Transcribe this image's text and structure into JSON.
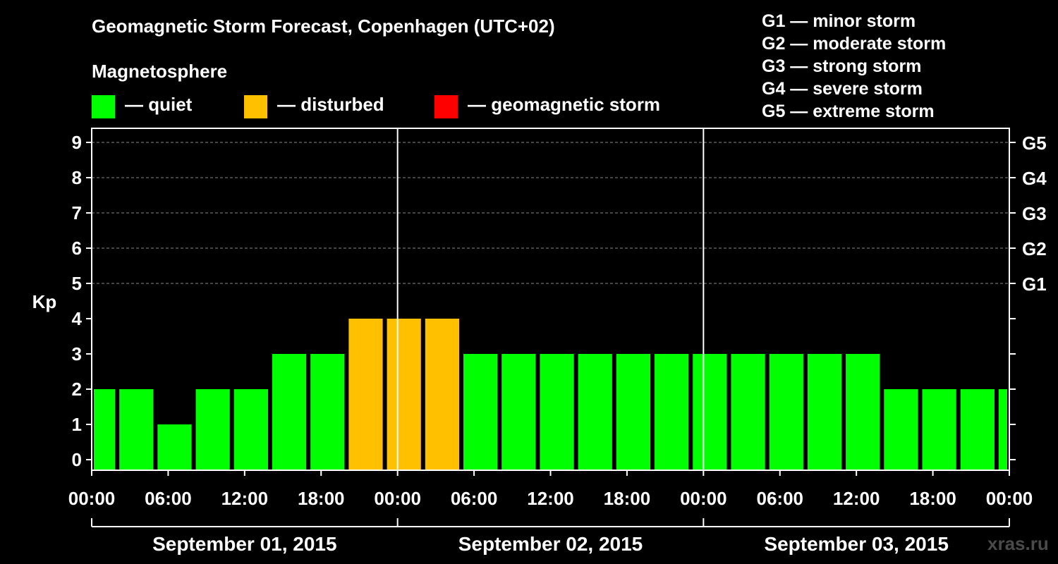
{
  "title": "Geomagnetic Storm Forecast, Copenhagen (UTC+02)",
  "magnetosphere": {
    "title": "Magnetosphere",
    "legend": [
      {
        "id": "quiet",
        "label": "— quiet",
        "color": "#00ff00"
      },
      {
        "id": "disturbed",
        "label": "— disturbed",
        "color": "#ffc000"
      },
      {
        "id": "storm",
        "label": "— geomagnetic storm",
        "color": "#ff0000"
      }
    ]
  },
  "g_scale": [
    "G1 — minor storm",
    "G2 — moderate storm",
    "G3 — strong storm",
    "G4 — severe storm",
    "G5 — extreme storm"
  ],
  "watermark": "xras.ru",
  "chart_data": {
    "type": "bar",
    "ylabel": "Kp",
    "ylim": [
      0,
      9
    ],
    "grid": "dashed horizontal lines at 5–9",
    "y_ticks": [
      "0",
      "1",
      "2",
      "3",
      "4",
      "5",
      "6",
      "7",
      "8",
      "9"
    ],
    "y2_ticks": [
      {
        "value": 5,
        "label": "G1"
      },
      {
        "value": 6,
        "label": "G2"
      },
      {
        "value": 7,
        "label": "G3"
      },
      {
        "value": 8,
        "label": "G4"
      },
      {
        "value": 9,
        "label": "G5"
      }
    ],
    "x_tick_labels": [
      "00:00",
      "06:00",
      "12:00",
      "18:00",
      "00:00",
      "06:00",
      "12:00",
      "18:00",
      "00:00",
      "06:00",
      "12:00",
      "18:00",
      "00:00"
    ],
    "dates": [
      "September 01, 2015",
      "September 02, 2015",
      "September 03, 2015"
    ],
    "x_range_hours": [
      0,
      72
    ],
    "bars": [
      {
        "start_hour": 0,
        "end_hour": 2,
        "value": 2,
        "level": "quiet"
      },
      {
        "start_hour": 2,
        "end_hour": 5,
        "value": 2,
        "level": "quiet"
      },
      {
        "start_hour": 5,
        "end_hour": 8,
        "value": 1,
        "level": "quiet"
      },
      {
        "start_hour": 8,
        "end_hour": 11,
        "value": 2,
        "level": "quiet"
      },
      {
        "start_hour": 11,
        "end_hour": 14,
        "value": 2,
        "level": "quiet"
      },
      {
        "start_hour": 14,
        "end_hour": 17,
        "value": 3,
        "level": "quiet"
      },
      {
        "start_hour": 17,
        "end_hour": 20,
        "value": 3,
        "level": "quiet"
      },
      {
        "start_hour": 20,
        "end_hour": 23,
        "value": 4,
        "level": "disturbed"
      },
      {
        "start_hour": 23,
        "end_hour": 26,
        "value": 4,
        "level": "disturbed"
      },
      {
        "start_hour": 26,
        "end_hour": 29,
        "value": 4,
        "level": "disturbed"
      },
      {
        "start_hour": 29,
        "end_hour": 32,
        "value": 3,
        "level": "quiet"
      },
      {
        "start_hour": 32,
        "end_hour": 35,
        "value": 3,
        "level": "quiet"
      },
      {
        "start_hour": 35,
        "end_hour": 38,
        "value": 3,
        "level": "quiet"
      },
      {
        "start_hour": 38,
        "end_hour": 41,
        "value": 3,
        "level": "quiet"
      },
      {
        "start_hour": 41,
        "end_hour": 44,
        "value": 3,
        "level": "quiet"
      },
      {
        "start_hour": 44,
        "end_hour": 47,
        "value": 3,
        "level": "quiet"
      },
      {
        "start_hour": 47,
        "end_hour": 50,
        "value": 3,
        "level": "quiet"
      },
      {
        "start_hour": 50,
        "end_hour": 53,
        "value": 3,
        "level": "quiet"
      },
      {
        "start_hour": 53,
        "end_hour": 56,
        "value": 3,
        "level": "quiet"
      },
      {
        "start_hour": 56,
        "end_hour": 59,
        "value": 3,
        "level": "quiet"
      },
      {
        "start_hour": 59,
        "end_hour": 62,
        "value": 3,
        "level": "quiet"
      },
      {
        "start_hour": 62,
        "end_hour": 65,
        "value": 2,
        "level": "quiet"
      },
      {
        "start_hour": 65,
        "end_hour": 68,
        "value": 2,
        "level": "quiet"
      },
      {
        "start_hour": 68,
        "end_hour": 71,
        "value": 2,
        "level": "quiet"
      },
      {
        "start_hour": 71,
        "end_hour": 72,
        "value": 2,
        "level": "quiet"
      }
    ]
  }
}
